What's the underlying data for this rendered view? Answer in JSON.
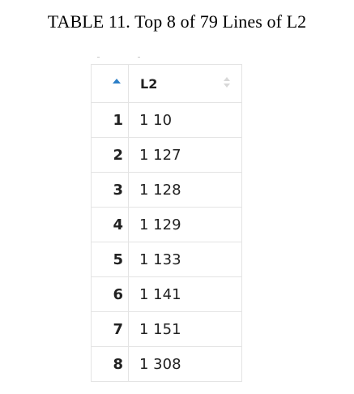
{
  "caption": "TABLE 11. Top 8 of 79 Lines of L2",
  "table": {
    "column_header": "L2",
    "sort_icon": "sort-ascending-icon",
    "column_sort_icon": "sort-both-icon",
    "accent_color": "#2d7fc7",
    "rows": [
      {
        "index": "1",
        "value": "1 10"
      },
      {
        "index": "2",
        "value": "1 127"
      },
      {
        "index": "3",
        "value": "1 128"
      },
      {
        "index": "4",
        "value": "1 129"
      },
      {
        "index": "5",
        "value": "1 133"
      },
      {
        "index": "6",
        "value": "1 141"
      },
      {
        "index": "7",
        "value": "1 151"
      },
      {
        "index": "8",
        "value": "1 308"
      }
    ]
  }
}
